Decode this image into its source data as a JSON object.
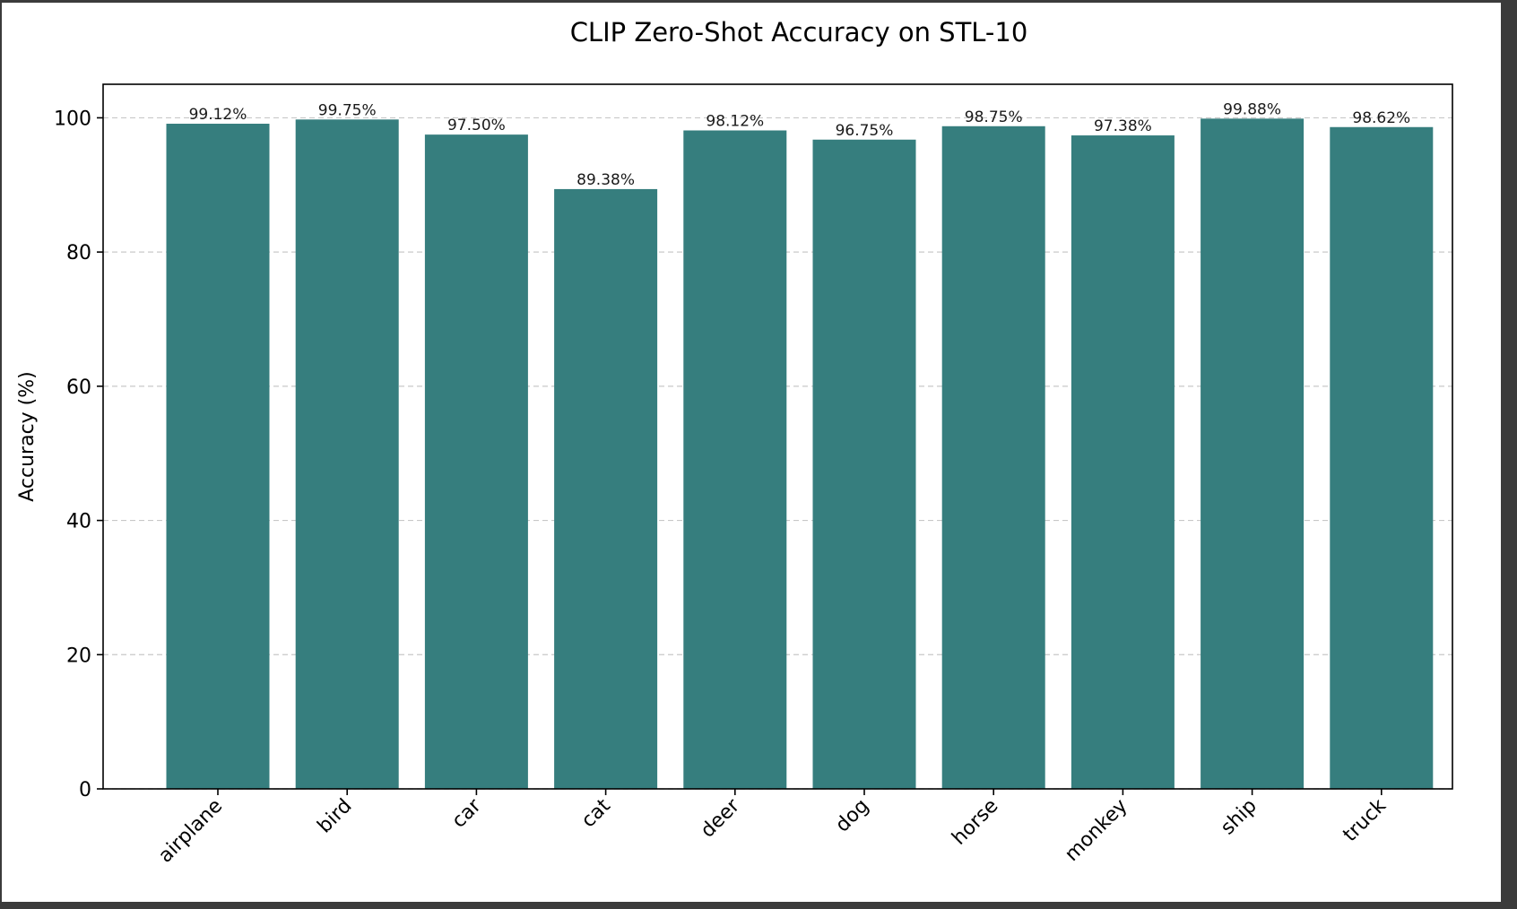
{
  "chart_data": {
    "type": "bar",
    "title": "CLIP Zero-Shot Accuracy on STL-10",
    "xlabel": "",
    "ylabel": "Accuracy (%)",
    "categories": [
      "airplane",
      "bird",
      "car",
      "cat",
      "deer",
      "dog",
      "horse",
      "monkey",
      "ship",
      "truck"
    ],
    "values": [
      99.12,
      99.75,
      97.5,
      89.38,
      98.12,
      96.75,
      98.75,
      97.38,
      99.88,
      98.62
    ],
    "data_labels": [
      "99.12%",
      "99.75%",
      "97.50%",
      "89.38%",
      "98.12%",
      "96.75%",
      "98.75%",
      "97.38%",
      "99.88%",
      "98.62%"
    ],
    "ylim": [
      0,
      105
    ],
    "yticks": [
      0,
      20,
      40,
      60,
      80,
      100
    ],
    "grid": "y-dashed",
    "bar_color": "#367e7e",
    "legend": "none"
  }
}
